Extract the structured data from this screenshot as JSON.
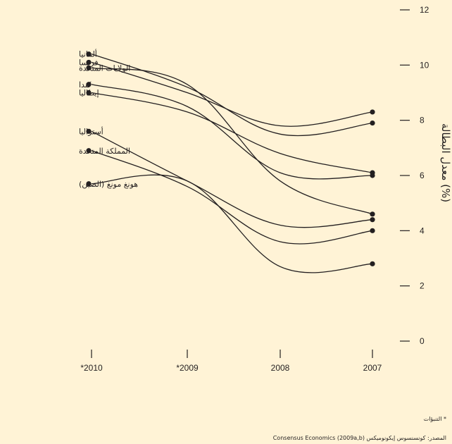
{
  "chart_data": {
    "type": "line",
    "x": [
      "2010*",
      "2009*",
      "2008",
      "2007"
    ],
    "ylabel": "معدل البطالة (%)",
    "ylim": [
      0,
      12
    ],
    "yticks": [
      0,
      2,
      4,
      6,
      8,
      10,
      12
    ],
    "grid": false,
    "series": [
      {
        "name": "ألمانيا",
        "values": [
          10.4,
          9.2,
          7.5,
          7.9
        ]
      },
      {
        "name": "فرنسا",
        "values": [
          10.1,
          9.0,
          7.8,
          8.3
        ]
      },
      {
        "name": "الولايات المتحدة",
        "values": [
          9.9,
          9.3,
          5.8,
          4.6
        ]
      },
      {
        "name": "كندا",
        "values": [
          9.3,
          8.5,
          6.1,
          6.0
        ]
      },
      {
        "name": "إيطاليا",
        "values": [
          9.0,
          8.3,
          6.8,
          6.1
        ]
      },
      {
        "name": "أستراليا",
        "values": [
          7.6,
          5.8,
          4.2,
          4.4
        ]
      },
      {
        "name": "المملكة المتحدة",
        "values": [
          6.9,
          5.6,
          3.6,
          4.0
        ]
      },
      {
        "name": "هونغ مونغ (الصين)",
        "values": [
          5.7,
          5.8,
          2.7,
          2.8
        ]
      }
    ]
  },
  "footnote": "* التنبؤات",
  "source": "المصدر: كونسنسوس إيكونوميكس Consensus Economics (2009a,b)",
  "colors": {
    "background": "#fff3d6",
    "ink": "#231f20"
  }
}
